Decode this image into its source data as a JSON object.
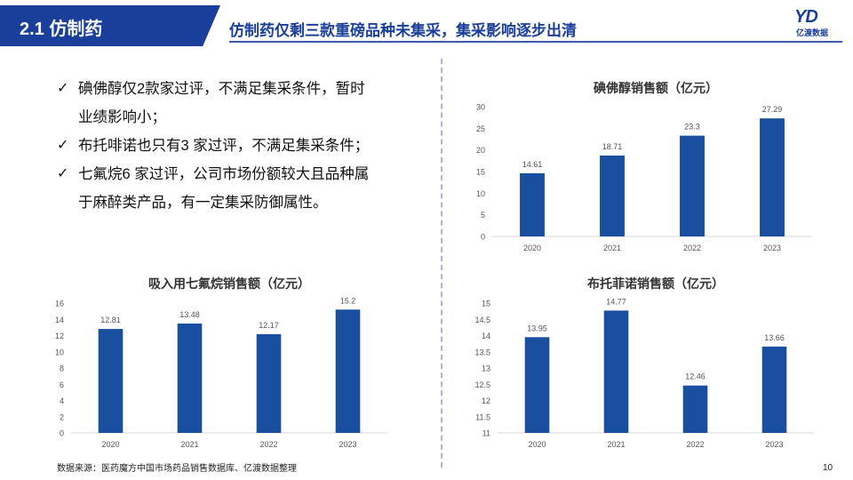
{
  "header": {
    "section_title": "2.1 仿制药",
    "headline": "仿制药仅剩三款重磅品种未集采，集采影响逐步出清",
    "logo_mark": "YD",
    "logo_text": "亿渡数据"
  },
  "bullets": [
    {
      "check": "✓",
      "lines": [
        "碘佛醇仅2款家过评，不满足集采条件，暂时",
        "业绩影响小；"
      ]
    },
    {
      "check": "✓",
      "lines": [
        "布托啡诺也只有3 家过评，不满足集采条件；"
      ]
    },
    {
      "check": "✓",
      "lines": [
        "七氟烷6 家过评，公司市场份额较大且品种属",
        "于麻醉类产品，有一定集采防御属性。"
      ]
    }
  ],
  "colors": {
    "bar": "#1a4fa0",
    "brand": "#1a3f9a"
  },
  "chart_data": [
    {
      "type": "bar",
      "title": "碘佛醇销售额（亿元）",
      "categories": [
        "2020",
        "2021",
        "2022",
        "2023"
      ],
      "values": [
        14.61,
        18.71,
        23.3,
        27.29
      ],
      "value_labels": [
        "14.61",
        "18.71",
        "23.3",
        "27.29"
      ],
      "ylim": [
        0,
        30
      ],
      "yticks": [
        0,
        5,
        10,
        15,
        20,
        25,
        30
      ],
      "grid": false
    },
    {
      "type": "bar",
      "title": "吸入用七氟烷销售额（亿元）",
      "categories": [
        "2020",
        "2021",
        "2022",
        "2023"
      ],
      "values": [
        12.81,
        13.48,
        12.17,
        15.2
      ],
      "value_labels": [
        "12.81",
        "13.48",
        "12.17",
        "15.2"
      ],
      "ylim": [
        0,
        16
      ],
      "yticks": [
        0,
        2,
        4,
        6,
        8,
        10,
        12,
        14,
        16
      ],
      "grid": false
    },
    {
      "type": "bar",
      "title": "布托菲诺销售额（亿元）",
      "categories": [
        "2020",
        "2021",
        "2022",
        "2023"
      ],
      "values": [
        13.95,
        14.77,
        12.46,
        13.66
      ],
      "value_labels": [
        "13.95",
        "14.77",
        "12.46",
        "13.66"
      ],
      "ylim": [
        11,
        15
      ],
      "yticks": [
        11,
        11.5,
        12,
        12.5,
        13,
        13.5,
        14,
        14.5,
        15
      ],
      "grid": false
    }
  ],
  "footer": {
    "source": "数据来源：医药魔方中国市场药品销售数据库、亿渡数据整理",
    "page_number": "10"
  }
}
